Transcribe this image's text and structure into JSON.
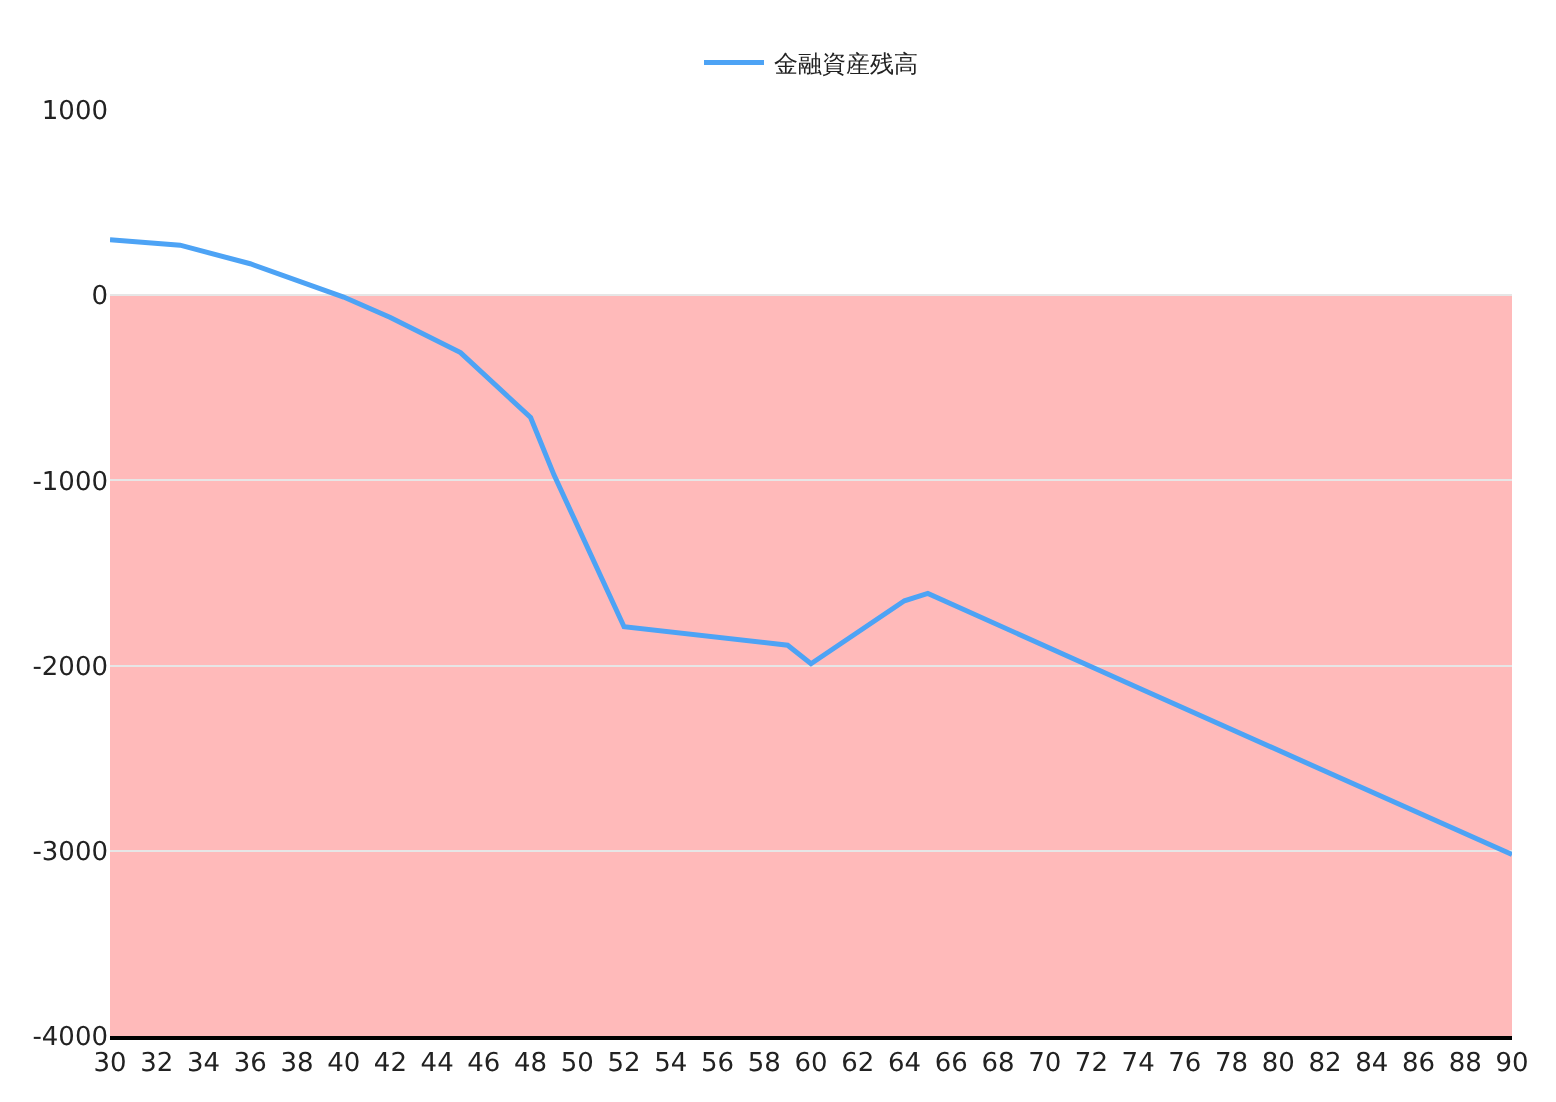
{
  "chart_data": {
    "type": "line",
    "x": [
      30,
      33,
      36,
      40,
      42,
      45,
      48,
      49,
      52,
      59,
      60,
      64,
      65,
      74,
      90
    ],
    "series": [
      {
        "name": "金融資産残高",
        "color": "#4da3f5",
        "values": [
          300,
          270,
          170,
          -10,
          -120,
          -310,
          -660,
          -970,
          -1790,
          -1890,
          -1990,
          -1650,
          -1610,
          -2120,
          -3020
        ]
      }
    ],
    "xlim": [
      30,
      90
    ],
    "xticks": [
      30,
      32,
      34,
      36,
      38,
      40,
      42,
      44,
      46,
      48,
      50,
      52,
      54,
      56,
      58,
      60,
      62,
      64,
      66,
      68,
      70,
      72,
      74,
      76,
      78,
      80,
      82,
      84,
      86,
      88,
      90
    ],
    "ylim": [
      -4000,
      1000
    ],
    "yticks": [
      -4000,
      -3000,
      -2000,
      -1000,
      0,
      1000
    ],
    "bands": [
      {
        "axis": "y",
        "from": 0,
        "to": -4000,
        "color": "#ff0000"
      }
    ],
    "grid": "y",
    "legend": "top",
    "marker": "none",
    "line_style": "solid"
  }
}
